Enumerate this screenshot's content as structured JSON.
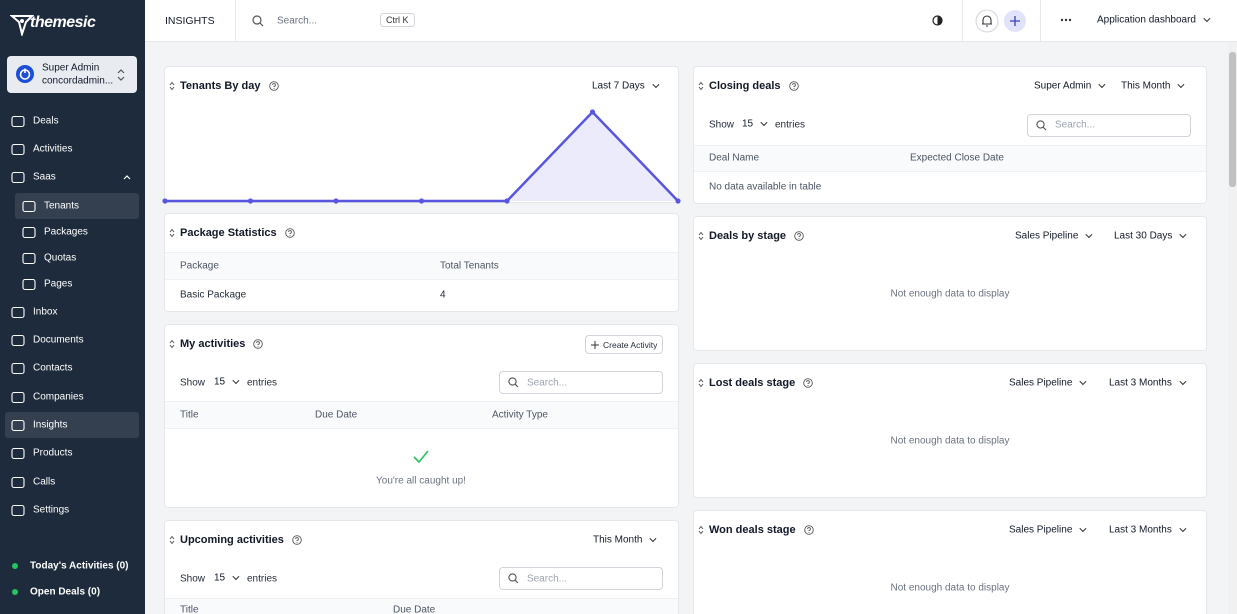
{
  "sidebar": {
    "brand": "themesic",
    "user": {
      "name": "Super Admin",
      "email": "concordadmin..."
    },
    "nav": [
      "Deals",
      "Activities",
      "Saas",
      "Tenants",
      "Packages",
      "Quotas",
      "Pages",
      "Inbox",
      "Documents",
      "Contacts",
      "Companies",
      "Insights",
      "Products",
      "Calls",
      "Settings"
    ],
    "footer": [
      "Today's Activities (0)",
      "Open Deals (0)"
    ]
  },
  "topbar": {
    "title": "INSIGHTS",
    "search_placeholder": "Search...",
    "shortcut": "Ctrl K",
    "dashboard": "Application dashboard"
  },
  "cards": {
    "tenants_by_day": {
      "title": "Tenants By day",
      "period": "Last 7 Days",
      "chart": {
        "type": "line",
        "values": [
          0,
          0,
          0,
          0,
          0,
          1,
          0
        ],
        "ylim": [
          0,
          1
        ],
        "color": "#5856e0"
      }
    },
    "package_statistics": {
      "title": "Package Statistics",
      "columns": [
        "Package",
        "Total Tenants"
      ],
      "rows": [
        [
          "Basic Package",
          4
        ]
      ]
    },
    "my_activities": {
      "title": "My activities",
      "button": "Create Activity",
      "show": "Show",
      "entries_count": 15,
      "entries": "entries",
      "search_placeholder": "Search...",
      "columns": [
        "Title",
        "Due Date",
        "Activity Type"
      ],
      "empty": "You're all caught up!"
    },
    "upcoming_activities": {
      "title": "Upcoming activities",
      "period": "This Month",
      "show": "Show",
      "entries_count": 15,
      "entries": "entries",
      "search_placeholder": "Search...",
      "columns": [
        "Title",
        "Due Date"
      ]
    },
    "closing_deals": {
      "title": "Closing deals",
      "owner": "Super Admin",
      "period": "This Month",
      "show": "Show",
      "entries_count": 15,
      "entries": "entries",
      "search_placeholder": "Search...",
      "columns": [
        "Deal Name",
        "Expected Close Date"
      ],
      "empty": "No data available in table"
    },
    "deals_by_stage": {
      "title": "Deals by stage",
      "pipeline": "Sales Pipeline",
      "period": "Last 30 Days",
      "empty": "Not enough data to display"
    },
    "lost_deals_stage": {
      "title": "Lost deals stage",
      "pipeline": "Sales Pipeline",
      "period": "Last 3 Months",
      "empty": "Not enough data to display"
    },
    "won_deals_stage": {
      "title": "Won deals stage",
      "pipeline": "Sales Pipeline",
      "period": "Last 3 Months",
      "empty": "Not enough data to display"
    }
  }
}
